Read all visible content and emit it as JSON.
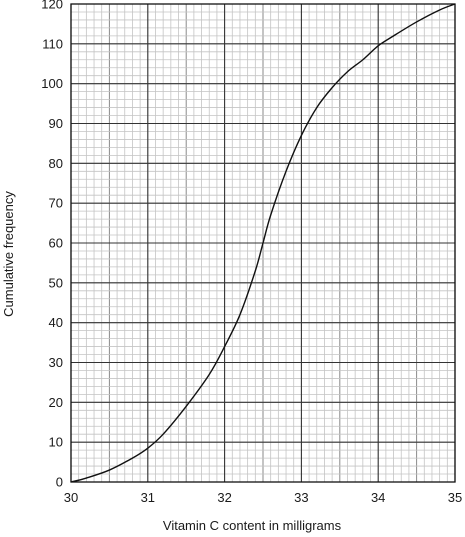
{
  "chart_data": {
    "type": "line",
    "title": "",
    "xlabel": "Vitamin C content in milligrams",
    "ylabel": "Cumulative frequency",
    "xlim": [
      30,
      35
    ],
    "ylim": [
      0,
      120
    ],
    "x_ticks": [
      30,
      31,
      32,
      33,
      34,
      35
    ],
    "y_ticks": [
      0,
      10,
      20,
      30,
      40,
      50,
      60,
      70,
      80,
      90,
      100,
      110,
      120
    ],
    "grid": true,
    "x_minor_step": 0.1,
    "y_minor_step": 2,
    "series": [
      {
        "x": [
          30.0,
          30.2,
          30.5,
          30.8,
          31.0,
          31.2,
          31.5,
          31.8,
          32.0,
          32.2,
          32.4,
          32.5,
          32.6,
          32.8,
          33.0,
          33.2,
          33.4,
          33.6,
          33.8,
          34.0,
          34.2,
          34.5,
          34.8,
          35.0
        ],
        "y": [
          0,
          1,
          3,
          6,
          8.5,
          12,
          19,
          27,
          34,
          42,
          53,
          60,
          67,
          78,
          87,
          94,
          99,
          103,
          106,
          109.5,
          112,
          115.5,
          118.5,
          120
        ]
      }
    ]
  }
}
